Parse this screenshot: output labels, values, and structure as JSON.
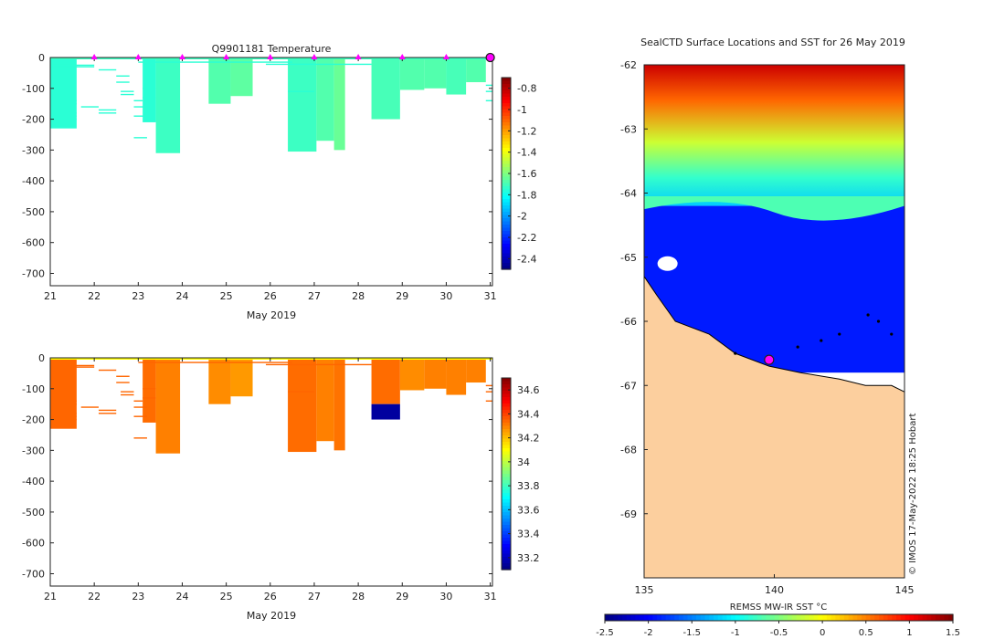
{
  "chart_data": [
    {
      "type": "heatmap",
      "title": "Q9901181  Temperature",
      "xlabel": "May 2019",
      "ylabel": "",
      "x_ticks": [
        21,
        22,
        23,
        24,
        25,
        26,
        27,
        28,
        29,
        30,
        31
      ],
      "y_ticks": [
        0,
        -100,
        -200,
        -300,
        -400,
        -500,
        -600,
        -700
      ],
      "xlim": [
        21,
        31.05
      ],
      "ylim": [
        -740,
        0
      ],
      "colorbar": {
        "ticks": [
          "-0.8",
          "-1",
          "-1.2",
          "-1.4",
          "-1.6",
          "-1.8",
          "-2",
          "-2.2",
          "-2.4"
        ],
        "min": -2.5,
        "max": -0.7
      },
      "markers_day": [
        22.0,
        23.0,
        24.0,
        25.0,
        26.0,
        27.0,
        28.0,
        29.0,
        30.0
      ],
      "end_marker_day": 31.0,
      "profiles": [
        {
          "day": 21.0,
          "day_end": 21.6,
          "depth": 230,
          "value": -1.75
        },
        {
          "day": 23.1,
          "day_end": 23.4,
          "depth": 210,
          "value": -1.75
        },
        {
          "day": 23.4,
          "day_end": 23.95,
          "depth": 310,
          "value": -1.72
        },
        {
          "day": 24.6,
          "day_end": 25.1,
          "depth": 150,
          "value": -1.68
        },
        {
          "day": 25.1,
          "day_end": 25.6,
          "depth": 125,
          "value": -1.66
        },
        {
          "day": 26.4,
          "day_end": 27.05,
          "depth": 305,
          "value": -1.72
        },
        {
          "day": 27.05,
          "day_end": 27.45,
          "depth": 270,
          "value": -1.68
        },
        {
          "day": 27.45,
          "day_end": 27.7,
          "depth": 300,
          "value": -1.64
        },
        {
          "day": 28.3,
          "day_end": 28.95,
          "depth": 200,
          "value": -1.7
        },
        {
          "day": 28.95,
          "day_end": 29.5,
          "depth": 105,
          "value": -1.68
        },
        {
          "day": 29.5,
          "day_end": 30.0,
          "depth": 100,
          "value": -1.68
        },
        {
          "day": 30.0,
          "day_end": 30.45,
          "depth": 120,
          "value": -1.7
        },
        {
          "day": 30.45,
          "day_end": 30.9,
          "depth": 80,
          "value": -1.68
        }
      ],
      "thin_lines": [
        {
          "day": 21.0,
          "day_end": 21.6,
          "depth": 140
        },
        {
          "day": 21.0,
          "day_end": 21.6,
          "depth": 150
        },
        {
          "day": 21.0,
          "day_end": 21.6,
          "depth": 180
        },
        {
          "day": 21.0,
          "day_end": 21.6,
          "depth": 190
        },
        {
          "day": 21.0,
          "day_end": 21.6,
          "depth": 200
        },
        {
          "day": 21.0,
          "day_end": 22.0,
          "depth": 25
        },
        {
          "day": 21.0,
          "day_end": 22.0,
          "depth": 30
        },
        {
          "day": 21.7,
          "day_end": 22.1,
          "depth": 160
        },
        {
          "day": 22.1,
          "day_end": 22.5,
          "depth": 170
        },
        {
          "day": 22.1,
          "day_end": 22.5,
          "depth": 180
        },
        {
          "day": 22.1,
          "day_end": 22.5,
          "depth": 40
        },
        {
          "day": 22.5,
          "day_end": 22.8,
          "depth": 60
        },
        {
          "day": 22.5,
          "day_end": 22.8,
          "depth": 80
        },
        {
          "day": 22.6,
          "day_end": 22.9,
          "depth": 110
        },
        {
          "day": 22.6,
          "day_end": 22.9,
          "depth": 120
        },
        {
          "day": 22.9,
          "day_end": 23.1,
          "depth": 140
        },
        {
          "day": 22.9,
          "day_end": 23.2,
          "depth": 160
        },
        {
          "day": 22.9,
          "day_end": 23.2,
          "depth": 190
        },
        {
          "day": 22.9,
          "day_end": 23.2,
          "depth": 260
        },
        {
          "day": 23.1,
          "day_end": 23.4,
          "depth": 100
        },
        {
          "day": 23.1,
          "day_end": 23.4,
          "depth": 130
        },
        {
          "day": 26.4,
          "day_end": 27.0,
          "depth": 110
        },
        {
          "day": 23.0,
          "day_end": 26.5,
          "depth": 15
        },
        {
          "day": 25.9,
          "day_end": 28.3,
          "depth": 22
        },
        {
          "day": 30.9,
          "day_end": 31.05,
          "depth": 90
        },
        {
          "day": 30.9,
          "day_end": 31.05,
          "depth": 110
        },
        {
          "day": 30.9,
          "day_end": 31.05,
          "depth": 140
        }
      ]
    },
    {
      "type": "heatmap",
      "title": "",
      "xlabel": "May 2019",
      "ylabel": "",
      "x_ticks": [
        21,
        22,
        23,
        24,
        25,
        26,
        27,
        28,
        29,
        30,
        31
      ],
      "y_ticks": [
        0,
        -100,
        -200,
        -300,
        -400,
        -500,
        -600,
        -700
      ],
      "xlim": [
        21,
        31.05
      ],
      "ylim": [
        -740,
        0
      ],
      "colorbar": {
        "ticks": [
          "34.6",
          "34.4",
          "34.2",
          "34",
          "33.8",
          "33.6",
          "33.4",
          "33.2"
        ],
        "min": 33.1,
        "max": 34.7
      },
      "profiles": [
        {
          "day": 21.0,
          "day_end": 21.6,
          "depth": 230,
          "value": 34.34
        },
        {
          "day": 23.1,
          "day_end": 23.4,
          "depth": 210,
          "value": 34.33
        },
        {
          "day": 23.4,
          "day_end": 23.95,
          "depth": 310,
          "value": 34.3
        },
        {
          "day": 24.6,
          "day_end": 25.1,
          "depth": 150,
          "value": 34.28
        },
        {
          "day": 25.1,
          "day_end": 25.6,
          "depth": 125,
          "value": 34.26
        },
        {
          "day": 26.4,
          "day_end": 27.05,
          "depth": 305,
          "value": 34.33
        },
        {
          "day": 27.05,
          "day_end": 27.45,
          "depth": 270,
          "value": 34.3
        },
        {
          "day": 27.45,
          "day_end": 27.7,
          "depth": 300,
          "value": 34.32
        },
        {
          "day": 28.3,
          "day_end": 28.95,
          "depth": 150,
          "value": 34.33
        },
        {
          "day": 28.95,
          "day_end": 29.5,
          "depth": 105,
          "value": 34.28
        },
        {
          "day": 29.5,
          "day_end": 30.0,
          "depth": 100,
          "value": 34.3
        },
        {
          "day": 30.0,
          "day_end": 30.45,
          "depth": 120,
          "value": 34.3
        },
        {
          "day": 30.45,
          "day_end": 30.9,
          "depth": 80,
          "value": 34.3
        }
      ],
      "deep_block": {
        "day": 28.3,
        "day_end": 28.95,
        "depth_top": 150,
        "depth": 200,
        "value": 33.15
      },
      "surface_value": 34.1
    },
    {
      "type": "heatmap",
      "title": "SealCTD Surface Locations and SST for 26 May 2019",
      "xlabel": "REMSS MW-IR SST °C",
      "x_ticks": [
        135,
        140,
        145
      ],
      "y_ticks": [
        -62,
        -63,
        -64,
        -65,
        -66,
        -67,
        -68,
        -69
      ],
      "xlim": [
        135,
        145
      ],
      "ylim": [
        -70,
        -62
      ],
      "colorbar": {
        "ticks": [
          "-2.5",
          "-2",
          "-1.5",
          "-1",
          "-0.5",
          "0",
          "0.5",
          "1",
          "1.5"
        ],
        "min": -2.5,
        "max": 1.5
      },
      "ice_value": -1.9,
      "open_water_value": 0.5,
      "seal_positions": [
        {
          "lon": 139.8,
          "lat": -66.6
        },
        {
          "lon": 143.6,
          "lat": -65.9
        },
        {
          "lon": 144.0,
          "lat": -66.0
        },
        {
          "lon": 142.5,
          "lat": -66.2
        },
        {
          "lon": 141.8,
          "lat": -66.3
        },
        {
          "lon": 140.9,
          "lat": -66.4
        },
        {
          "lon": 144.5,
          "lat": -66.2
        },
        {
          "lon": 138.5,
          "lat": -66.5
        }
      ],
      "credit": "© IMOS 17-May-2022 18:25 Hobart"
    }
  ],
  "labels": {
    "top_title": "Q9901181  Temperature",
    "top_xlabel": "May 2019",
    "bottom_xlabel": "May 2019",
    "map_title": "SealCTD Surface Locations and SST for 26 May 2019",
    "map_cbar_label": "REMSS MW-IR SST °C",
    "credit": "© IMOS 17-May-2022 18:25 Hobart"
  },
  "colors": {
    "marker": "#ff00ff",
    "land": "#fccf9e",
    "axis": "#222222"
  }
}
